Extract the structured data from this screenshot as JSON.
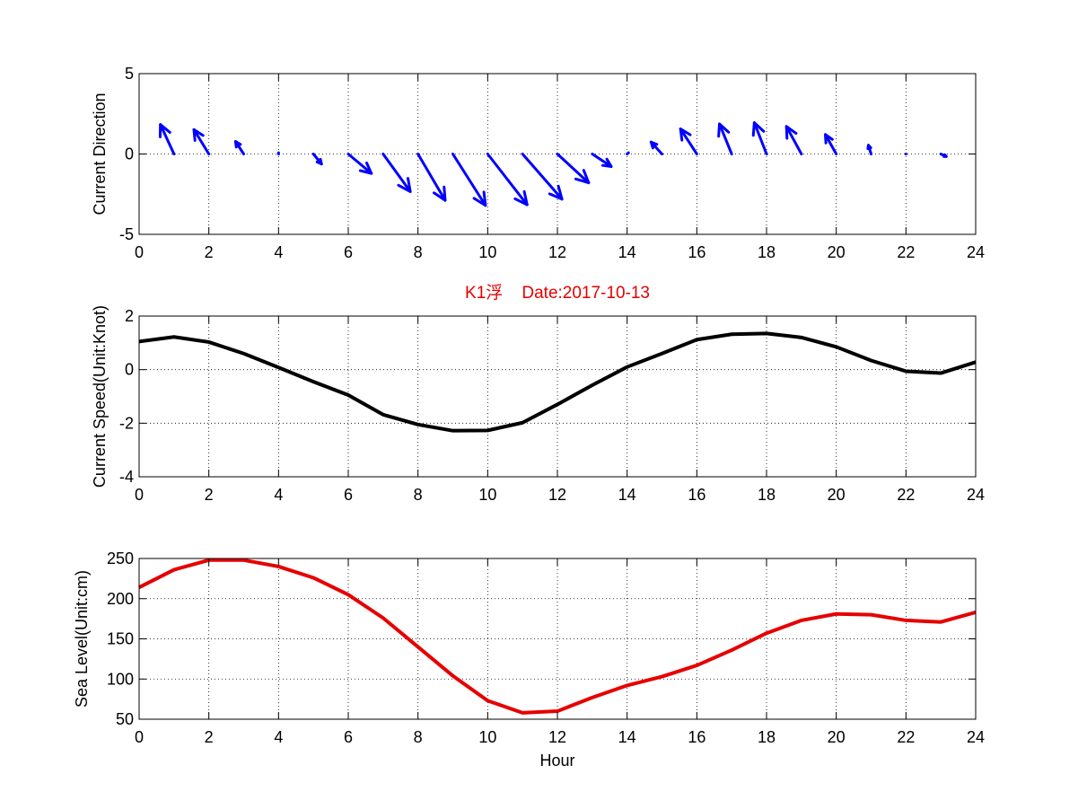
{
  "figure": {
    "title": "K1浮    Date:2017-10-13",
    "title_color": "#e60000"
  },
  "chart_data": [
    {
      "type": "quiver",
      "title": "",
      "xlabel": "",
      "ylabel": "Current Direction",
      "xlim": [
        0,
        24
      ],
      "ylim": [
        -5,
        5
      ],
      "xticks": [
        "0",
        "2",
        "4",
        "6",
        "8",
        "10",
        "12",
        "14",
        "16",
        "18",
        "20",
        "22",
        "24"
      ],
      "yticks": [
        "5",
        "0",
        "-5"
      ],
      "grid": true,
      "color": "#0000ff",
      "x": [
        1,
        2,
        3,
        4,
        5,
        6,
        7,
        8,
        9,
        10,
        11,
        12,
        13,
        14,
        15,
        16,
        17,
        18,
        19,
        20,
        21,
        22,
        23
      ],
      "u": [
        -0.5,
        -0.55,
        -0.3,
        0,
        0.3,
        0.85,
        1.0,
        1.0,
        1.2,
        1.45,
        1.45,
        1.15,
        0.7,
        0.05,
        -0.4,
        -0.6,
        -0.45,
        -0.45,
        -0.55,
        -0.4,
        -0.1,
        0,
        0.2
      ],
      "v": [
        2.35,
        1.95,
        1.0,
        0.1,
        -0.8,
        -1.55,
        -3.0,
        -3.7,
        -4.1,
        -4.05,
        -3.6,
        -2.3,
        -1.0,
        0.1,
        0.95,
        2.0,
        2.4,
        2.5,
        2.2,
        1.55,
        0.7,
        0,
        -0.2
      ]
    },
    {
      "type": "line",
      "title": "",
      "xlabel": "",
      "ylabel": "Current Speed(Unit:Knot)",
      "xlim": [
        0,
        24
      ],
      "ylim": [
        -4,
        2
      ],
      "xticks": [
        "0",
        "2",
        "4",
        "6",
        "8",
        "10",
        "12",
        "14",
        "16",
        "18",
        "20",
        "22",
        "24"
      ],
      "yticks": [
        "2",
        "0",
        "-2",
        "-4"
      ],
      "grid": true,
      "color": "#000000",
      "x": [
        0,
        1,
        2,
        3,
        4,
        5,
        6,
        7,
        8,
        9,
        10,
        11,
        12,
        13,
        14,
        15,
        16,
        17,
        18,
        19,
        20,
        21,
        22,
        23,
        24
      ],
      "y": [
        1.05,
        1.22,
        1.03,
        0.6,
        0.08,
        -0.45,
        -0.95,
        -1.68,
        -2.05,
        -2.28,
        -2.27,
        -1.98,
        -1.3,
        -0.58,
        0.1,
        0.6,
        1.12,
        1.32,
        1.35,
        1.2,
        0.85,
        0.34,
        -0.06,
        -0.13,
        0.28
      ]
    },
    {
      "type": "line",
      "title": "",
      "xlabel": "Hour",
      "ylabel": "Sea Level(Unit:cm)",
      "xlim": [
        0,
        24
      ],
      "ylim": [
        50,
        250
      ],
      "xticks": [
        "0",
        "2",
        "4",
        "6",
        "8",
        "10",
        "12",
        "14",
        "16",
        "18",
        "20",
        "22",
        "24"
      ],
      "yticks": [
        "250",
        "200",
        "150",
        "100",
        "50"
      ],
      "grid": true,
      "color": "#e60000",
      "x": [
        0,
        1,
        2,
        3,
        4,
        5,
        6,
        7,
        8,
        9,
        10,
        11,
        12,
        13,
        14,
        15,
        16,
        17,
        18,
        19,
        20,
        21,
        22,
        23,
        24
      ],
      "y": [
        214,
        236,
        248,
        248,
        240,
        226,
        205,
        176,
        140,
        104,
        73,
        58,
        60,
        77,
        92,
        103,
        117,
        136,
        157,
        173,
        181,
        180,
        173,
        171,
        183
      ]
    }
  ]
}
